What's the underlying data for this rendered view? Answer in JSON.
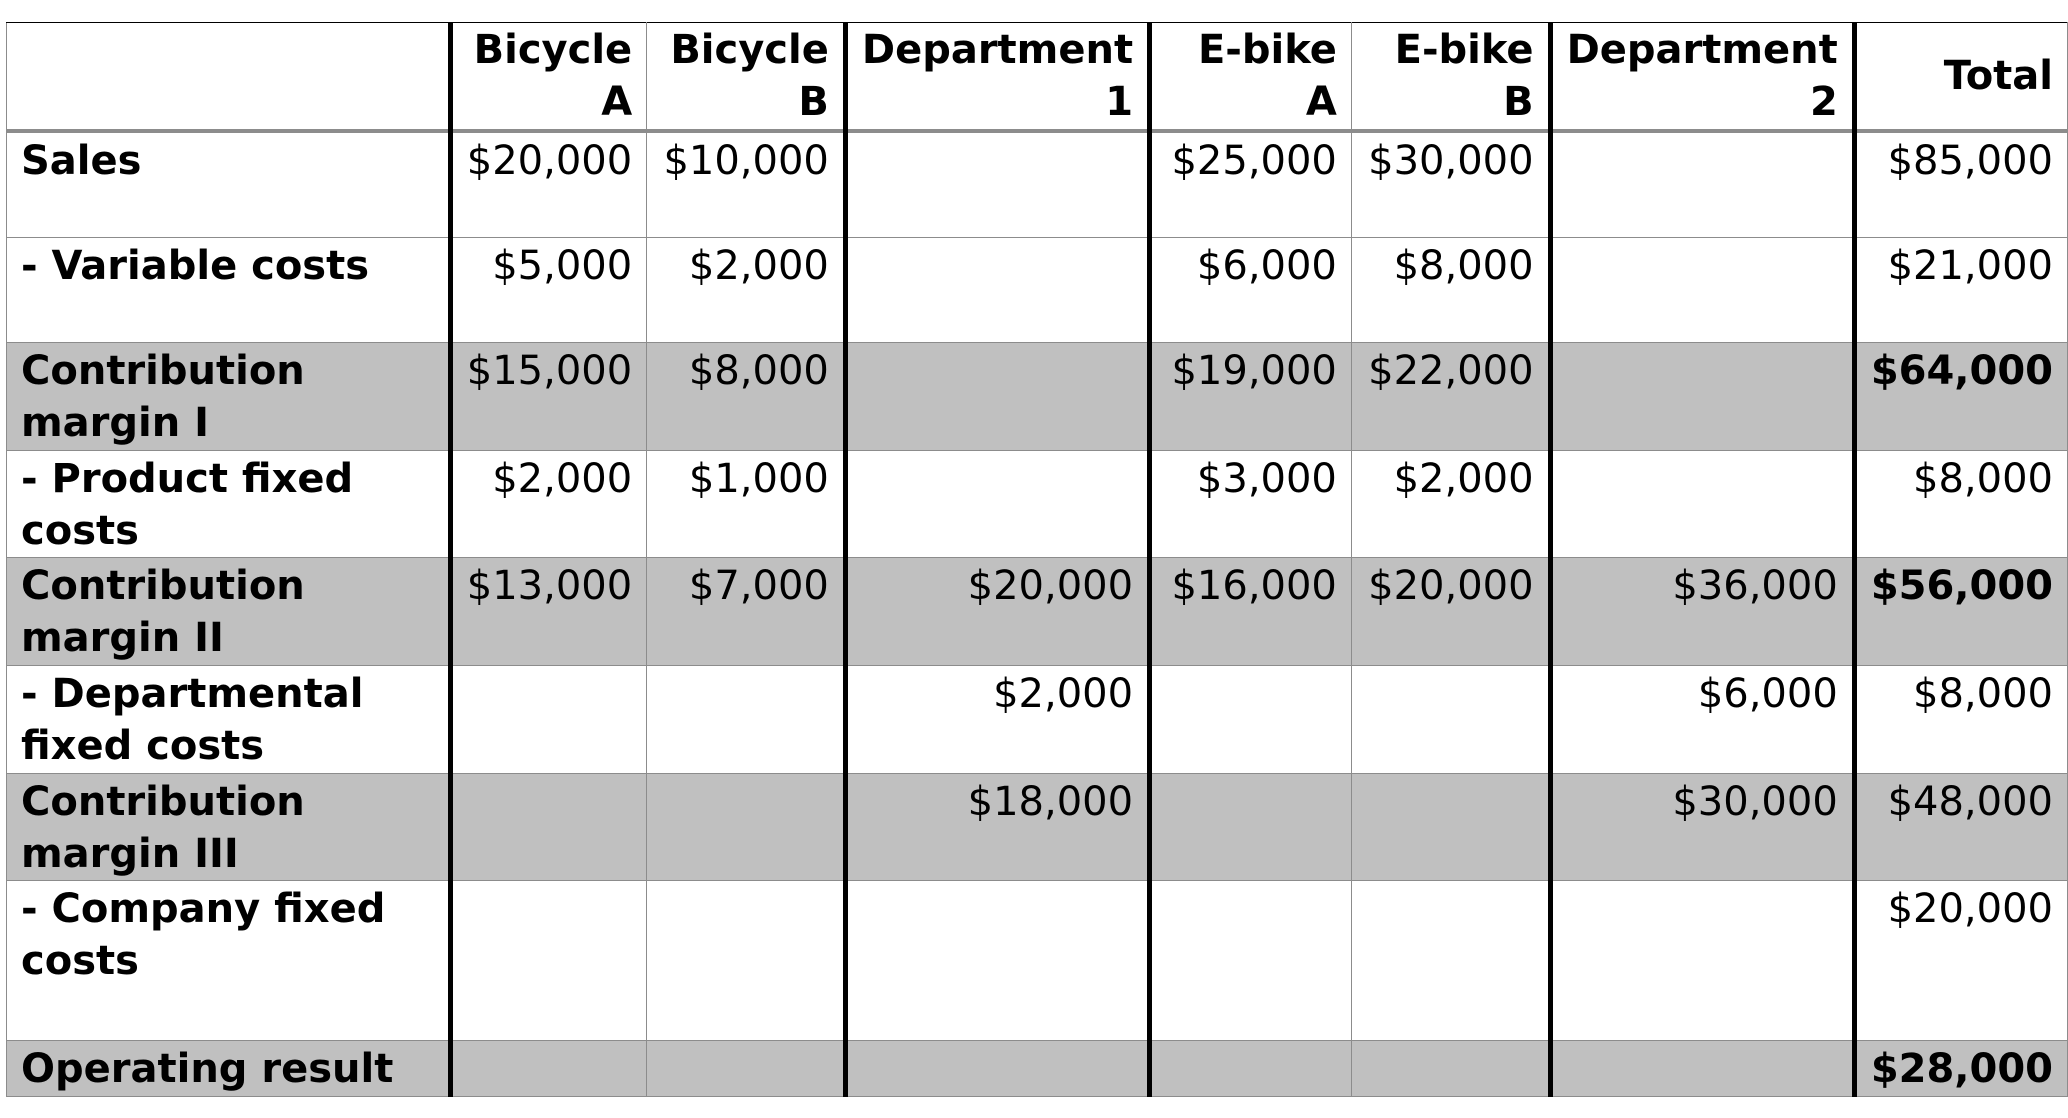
{
  "table": {
    "headers": [
      "",
      "Bicycle A",
      "Bicycle B",
      "Department 1",
      "E-bike A",
      "E-bike B",
      "Department 2",
      "Total"
    ],
    "rows": [
      {
        "label": "Sales",
        "cells": [
          "$20,000",
          "$10,000",
          "",
          "$25,000",
          "$30,000",
          "",
          "$85,000"
        ],
        "shaded": false
      },
      {
        "label": "- Variable costs",
        "cells": [
          "$5,000",
          "$2,000",
          "",
          "$6,000",
          "$8,000",
          "",
          "$21,000"
        ],
        "shaded": false
      },
      {
        "label": "Contribution margin I",
        "cells": [
          "$15,000",
          "$8,000",
          "",
          "$19,000",
          "$22,000",
          "",
          "$64,000"
        ],
        "shaded": true
      },
      {
        "label": "- Product fixed costs",
        "cells": [
          "$2,000",
          "$1,000",
          "",
          "$3,000",
          "$2,000",
          "",
          "$8,000"
        ],
        "shaded": false
      },
      {
        "label": "Contribution margin II",
        "cells": [
          "$13,000",
          "$7,000",
          "$20,000",
          "$16,000",
          "$20,000",
          "$36,000",
          "$56,000"
        ],
        "shaded": true
      },
      {
        "label": "- Departmental fixed costs",
        "cells": [
          "",
          "",
          "$2,000",
          "",
          "",
          "$6,000",
          "$8,000"
        ],
        "shaded": false
      },
      {
        "label": "Contribution margin III",
        "cells": [
          "",
          "",
          "$18,000",
          "",
          "",
          "$30,000",
          "$48,000"
        ],
        "shaded": true
      },
      {
        "label": "- Company fixed costs",
        "cells": [
          "",
          "",
          "",
          "",
          "",
          "",
          "$20,000"
        ],
        "shaded": false
      },
      {
        "label": "Operating result",
        "cells": [
          "",
          "",
          "",
          "",
          "",
          "",
          "$28,000"
        ],
        "shaded": true
      }
    ]
  },
  "colors": {
    "shade": "#c0c0c0",
    "grid": "#8c8c8c",
    "thick_border": "#000000"
  }
}
